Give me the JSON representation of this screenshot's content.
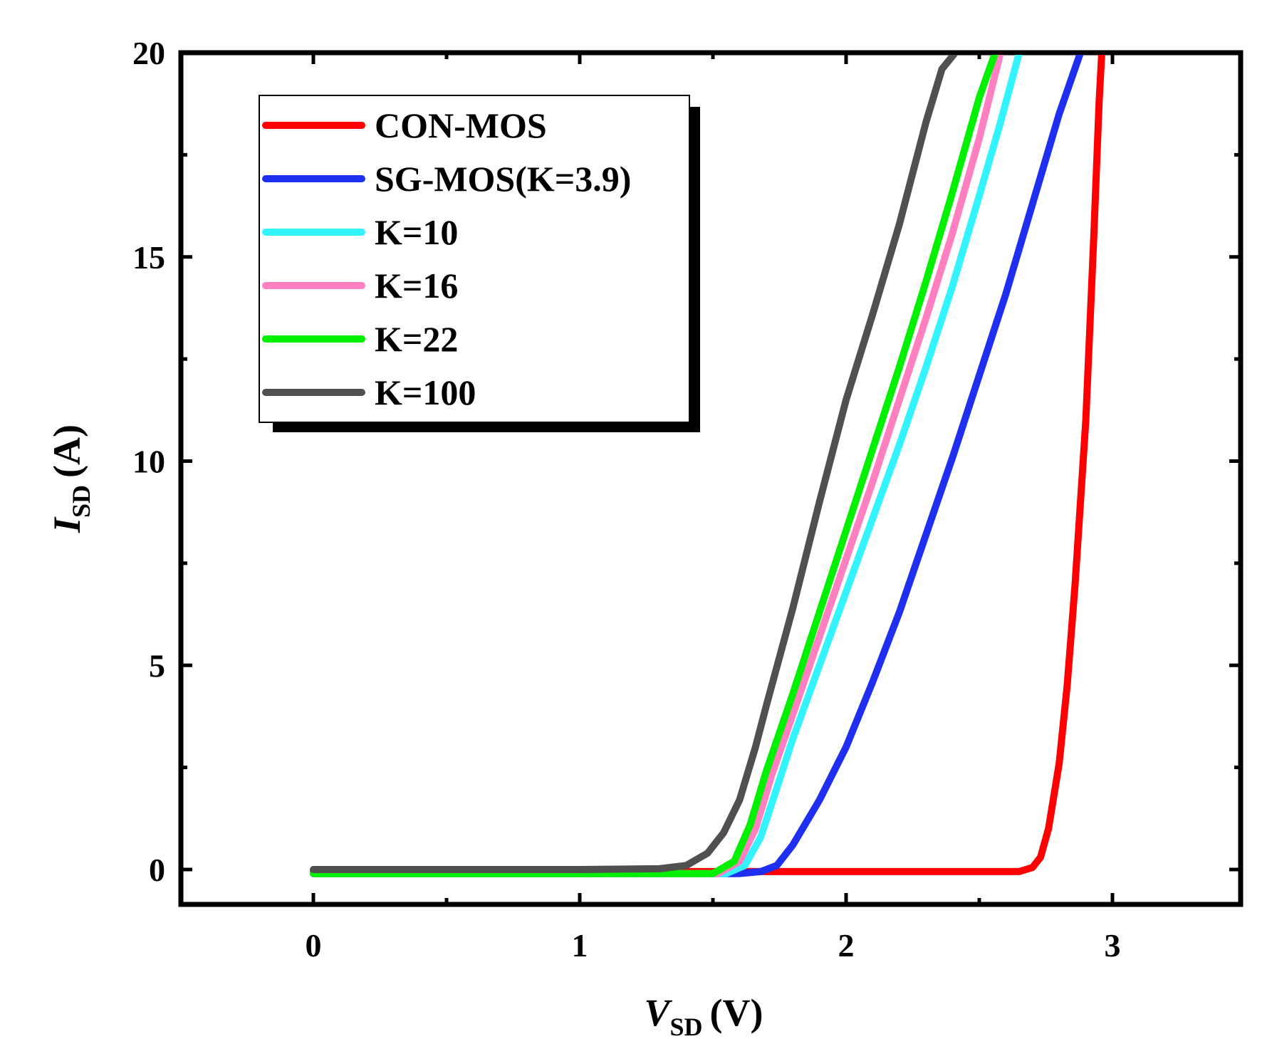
{
  "chart_data": {
    "type": "line",
    "title": "",
    "xlabel": {
      "main": "V",
      "sub": "SD",
      "unit": "(V)"
    },
    "ylabel": {
      "main": "I",
      "sub": "SD",
      "unit": "(A)"
    },
    "xlim": [
      -0.5,
      3.5
    ],
    "ylim": [
      -1.9,
      20
    ],
    "xticks": [
      0,
      1,
      2,
      3
    ],
    "xtick_labels": [
      "0",
      "1",
      "2",
      "3"
    ],
    "yticks": [
      0,
      5,
      10,
      15,
      20
    ],
    "ytick_labels": [
      "0",
      "5",
      "10",
      "15",
      "20"
    ],
    "grid": false,
    "legend_position": "top-left",
    "series": [
      {
        "name": "CON-MOS",
        "color": "#ff0000",
        "x": [
          0,
          1.0,
          2.0,
          2.5,
          2.65,
          2.7,
          2.73,
          2.76,
          2.8,
          2.83,
          2.86,
          2.9,
          2.93,
          2.95,
          2.96
        ],
        "y": [
          -0.05,
          -0.05,
          -0.05,
          -0.05,
          -0.05,
          0.05,
          0.3,
          1.0,
          2.6,
          4.5,
          7.0,
          11.0,
          15.5,
          18.8,
          20.0
        ]
      },
      {
        "name": "SG-MOS(K=3.9)",
        "color": "#1f2ff0",
        "x": [
          0,
          1.0,
          1.6,
          1.68,
          1.74,
          1.8,
          1.9,
          2.0,
          2.1,
          2.2,
          2.3,
          2.4,
          2.5,
          2.6,
          2.7,
          2.8,
          2.88
        ],
        "y": [
          -0.1,
          -0.1,
          -0.1,
          -0.05,
          0.1,
          0.6,
          1.7,
          3.0,
          4.6,
          6.3,
          8.2,
          10.1,
          12.1,
          14.1,
          16.3,
          18.5,
          20.0
        ]
      },
      {
        "name": "K=10",
        "color": "#33f3ff",
        "x": [
          0,
          1.0,
          1.55,
          1.62,
          1.68,
          1.74,
          1.8,
          1.9,
          2.0,
          2.1,
          2.2,
          2.3,
          2.4,
          2.5,
          2.58,
          2.65
        ],
        "y": [
          -0.1,
          -0.1,
          -0.1,
          0.1,
          0.8,
          2.0,
          3.2,
          5.0,
          6.8,
          8.6,
          10.4,
          12.3,
          14.3,
          16.5,
          18.3,
          20.0
        ]
      },
      {
        "name": "K=16",
        "color": "#ff80c0",
        "x": [
          0,
          1.0,
          1.52,
          1.6,
          1.66,
          1.72,
          1.8,
          1.9,
          2.0,
          2.1,
          2.2,
          2.3,
          2.4,
          2.5,
          2.58
        ],
        "y": [
          -0.1,
          -0.1,
          -0.1,
          0.2,
          1.0,
          2.3,
          3.8,
          5.7,
          7.6,
          9.5,
          11.5,
          13.5,
          15.6,
          17.9,
          20.0
        ]
      },
      {
        "name": "K=22",
        "color": "#00f000",
        "x": [
          0,
          1.0,
          1.5,
          1.58,
          1.64,
          1.7,
          1.8,
          1.9,
          2.0,
          2.1,
          2.2,
          2.3,
          2.4,
          2.5,
          2.56
        ],
        "y": [
          -0.1,
          -0.1,
          -0.1,
          0.2,
          1.1,
          2.4,
          4.3,
          6.3,
          8.3,
          10.3,
          12.3,
          14.4,
          16.6,
          18.9,
          20.0
        ]
      },
      {
        "name": "K=100",
        "color": "#505050",
        "x": [
          0,
          0.5,
          1.0,
          1.3,
          1.4,
          1.48,
          1.54,
          1.6,
          1.66,
          1.7,
          1.8,
          1.9,
          2.0,
          2.1,
          2.2,
          2.3,
          2.36,
          2.41
        ],
        "y": [
          0.0,
          0.0,
          0.0,
          0.02,
          0.1,
          0.4,
          0.9,
          1.7,
          3.0,
          4.0,
          6.4,
          9.0,
          11.5,
          13.6,
          15.8,
          18.3,
          19.6,
          20.0
        ]
      }
    ]
  }
}
